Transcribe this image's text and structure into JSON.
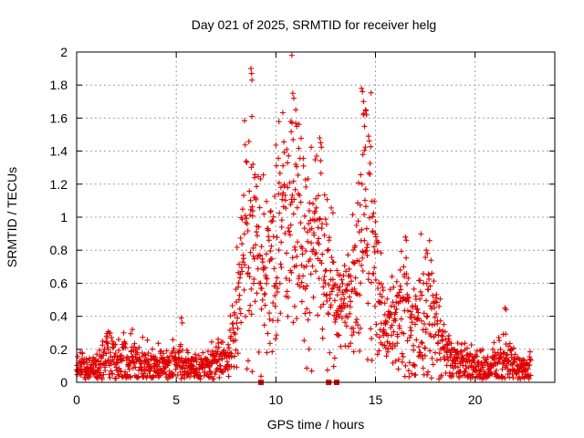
{
  "chart_data": {
    "type": "scatter",
    "title": "Day 021 of 2025, SRMTID for receiver helg",
    "xlabel": "GPS time / hours",
    "ylabel": "SRMTID / TECUs",
    "xlim": [
      0,
      24
    ],
    "ylim": [
      0,
      2
    ],
    "x_ticks": [
      0,
      5,
      10,
      15,
      20
    ],
    "x_tick_labels": [
      "0",
      "5",
      "10",
      "15",
      "20"
    ],
    "y_ticks": [
      0,
      0.2,
      0.4,
      0.6,
      0.8,
      1.0,
      1.2,
      1.4,
      1.6,
      1.8,
      2.0
    ],
    "y_tick_labels": [
      "0",
      "0.2",
      "0.4",
      "0.6",
      "0.8",
      "1",
      "1.2",
      "1.4",
      "1.6",
      "1.8",
      "2"
    ],
    "grid": true,
    "marker": "plus",
    "series": [
      {
        "name": "SRMTID",
        "color": "#e00000",
        "envelope": [
          {
            "x": 0.0,
            "base": 0.1,
            "spread": 0.06
          },
          {
            "x": 1.0,
            "base": 0.09,
            "spread": 0.05
          },
          {
            "x": 1.5,
            "base": 0.16,
            "spread": 0.12
          },
          {
            "x": 2.0,
            "base": 0.12,
            "spread": 0.09
          },
          {
            "x": 3.0,
            "base": 0.13,
            "spread": 0.1
          },
          {
            "x": 4.0,
            "base": 0.1,
            "spread": 0.06
          },
          {
            "x": 5.0,
            "base": 0.11,
            "spread": 0.09
          },
          {
            "x": 6.0,
            "base": 0.08,
            "spread": 0.06
          },
          {
            "x": 7.0,
            "base": 0.13,
            "spread": 0.07
          },
          {
            "x": 7.6,
            "base": 0.16,
            "spread": 0.07
          },
          {
            "x": 8.0,
            "base": 0.4,
            "spread": 0.3
          },
          {
            "x": 8.5,
            "base": 0.85,
            "spread": 0.42
          },
          {
            "x": 9.0,
            "base": 0.8,
            "spread": 0.45
          },
          {
            "x": 9.5,
            "base": 0.65,
            "spread": 0.35
          },
          {
            "x": 10.0,
            "base": 0.75,
            "spread": 0.4
          },
          {
            "x": 10.5,
            "base": 1.05,
            "spread": 0.45
          },
          {
            "x": 11.0,
            "base": 0.95,
            "spread": 0.45
          },
          {
            "x": 11.5,
            "base": 0.8,
            "spread": 0.4
          },
          {
            "x": 12.0,
            "base": 0.9,
            "spread": 0.4
          },
          {
            "x": 12.5,
            "base": 0.7,
            "spread": 0.35
          },
          {
            "x": 13.0,
            "base": 0.45,
            "spread": 0.22
          },
          {
            "x": 13.5,
            "base": 0.42,
            "spread": 0.2
          },
          {
            "x": 14.0,
            "base": 0.55,
            "spread": 0.3
          },
          {
            "x": 14.4,
            "base": 0.95,
            "spread": 0.5
          },
          {
            "x": 14.8,
            "base": 0.85,
            "spread": 0.45
          },
          {
            "x": 15.2,
            "base": 0.45,
            "spread": 0.2
          },
          {
            "x": 16.0,
            "base": 0.35,
            "spread": 0.15
          },
          {
            "x": 16.5,
            "base": 0.45,
            "spread": 0.3
          },
          {
            "x": 17.0,
            "base": 0.35,
            "spread": 0.22
          },
          {
            "x": 17.5,
            "base": 0.4,
            "spread": 0.3
          },
          {
            "x": 18.0,
            "base": 0.35,
            "spread": 0.18
          },
          {
            "x": 18.5,
            "base": 0.18,
            "spread": 0.1
          },
          {
            "x": 19.0,
            "base": 0.12,
            "spread": 0.08
          },
          {
            "x": 20.0,
            "base": 0.1,
            "spread": 0.07
          },
          {
            "x": 21.0,
            "base": 0.1,
            "spread": 0.08
          },
          {
            "x": 21.5,
            "base": 0.14,
            "spread": 0.1
          },
          {
            "x": 22.0,
            "base": 0.1,
            "spread": 0.07
          },
          {
            "x": 22.5,
            "base": 0.07,
            "spread": 0.05
          },
          {
            "x": 22.8,
            "base": 0.1,
            "spread": 0.08
          }
        ],
        "peaks": [
          {
            "x": 8.75,
            "y": 1.9
          },
          {
            "x": 8.78,
            "y": 1.87
          },
          {
            "x": 8.8,
            "y": 1.83
          },
          {
            "x": 8.8,
            "y": 1.61
          },
          {
            "x": 8.85,
            "y": 1.32
          },
          {
            "x": 10.8,
            "y": 1.98
          },
          {
            "x": 10.85,
            "y": 1.75
          },
          {
            "x": 10.9,
            "y": 1.72
          },
          {
            "x": 11.0,
            "y": 1.65
          },
          {
            "x": 10.75,
            "y": 1.58
          },
          {
            "x": 11.05,
            "y": 1.55
          },
          {
            "x": 12.2,
            "y": 1.48
          },
          {
            "x": 12.25,
            "y": 1.45
          },
          {
            "x": 14.3,
            "y": 1.78
          },
          {
            "x": 14.35,
            "y": 1.76
          },
          {
            "x": 14.4,
            "y": 1.7
          },
          {
            "x": 14.5,
            "y": 1.65
          },
          {
            "x": 14.55,
            "y": 1.62
          },
          {
            "x": 14.45,
            "y": 1.55
          },
          {
            "x": 5.25,
            "y": 0.39
          },
          {
            "x": 5.3,
            "y": 0.36
          },
          {
            "x": 2.8,
            "y": 0.32
          },
          {
            "x": 1.5,
            "y": 0.28
          },
          {
            "x": 16.5,
            "y": 0.88
          },
          {
            "x": 16.55,
            "y": 0.86
          },
          {
            "x": 17.55,
            "y": 0.8
          },
          {
            "x": 17.6,
            "y": 0.78
          },
          {
            "x": 21.5,
            "y": 0.45
          },
          {
            "x": 21.55,
            "y": 0.44
          }
        ],
        "zero_markers": [
          9.25,
          12.65,
          13.05
        ]
      }
    ]
  }
}
